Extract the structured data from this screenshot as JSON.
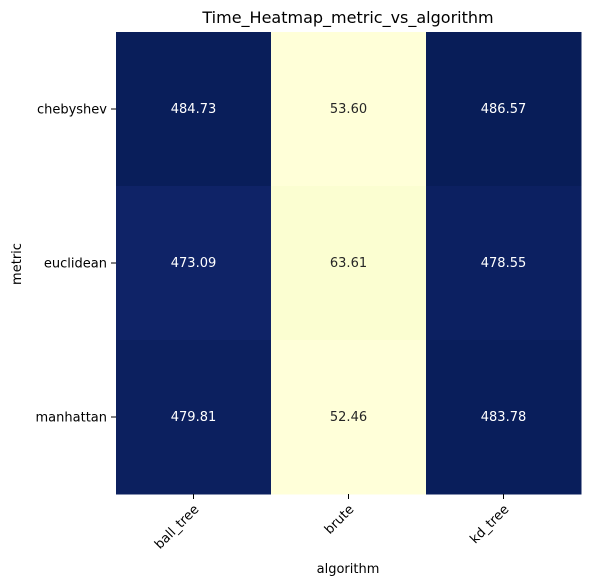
{
  "chart_data": {
    "type": "heatmap",
    "title": "Time_Heatmap_metric_vs_algorithm",
    "xlabel": "algorithm",
    "ylabel": "metric",
    "x_categories": [
      "ball_tree",
      "brute",
      "kd_tree"
    ],
    "y_categories": [
      "chebyshev",
      "euclidean",
      "manhattan"
    ],
    "values": [
      [
        484.73,
        53.6,
        486.57
      ],
      [
        473.09,
        63.61,
        478.55
      ],
      [
        479.81,
        52.46,
        483.78
      ]
    ],
    "value_labels": [
      [
        "484.73",
        "53.60",
        "486.57"
      ],
      [
        "473.09",
        "63.61",
        "478.55"
      ],
      [
        "479.81",
        "52.46",
        "483.78"
      ]
    ],
    "colormap": "YlGnBu",
    "colorbar": false,
    "annotate": true,
    "x_tick_rotation_deg": 45,
    "colors": {
      "low": "#ffffd9",
      "high": "#081d58",
      "text_on_dark": "#ffffff",
      "text_on_light": "#262626"
    }
  }
}
